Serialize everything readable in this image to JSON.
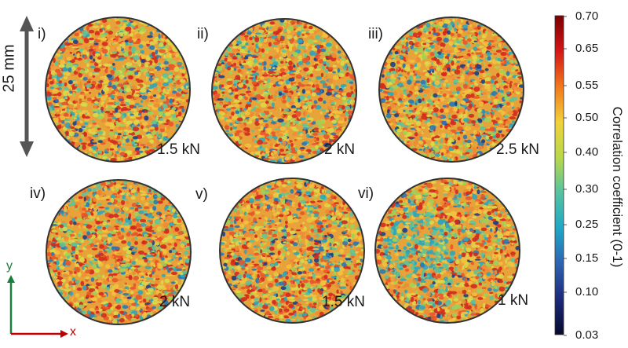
{
  "panels": [
    {
      "label": "i)",
      "load": "1.5 kN",
      "seed": 11,
      "lowPatch": false
    },
    {
      "label": "ii)",
      "load": "2 kN",
      "seed": 23,
      "lowPatch": false
    },
    {
      "label": "iii)",
      "load": "2.5 kN",
      "seed": 37,
      "lowPatch": false
    },
    {
      "label": "iv)",
      "load": "2 kN",
      "seed": 41,
      "lowPatch": false
    },
    {
      "label": "v)",
      "load": "1.5 kN",
      "seed": 53,
      "lowPatch": false
    },
    {
      "label": "vi)",
      "load": "1 kN",
      "seed": 67,
      "lowPatch": true
    }
  ],
  "scale_bar": {
    "label": "25 mm"
  },
  "axes": {
    "x_label": "x",
    "y_label": "y",
    "x_color": "#c00000",
    "y_color": "#1a7f3c"
  },
  "colorbar": {
    "title": "Correlation coefficient (0-1)",
    "ticks": [
      "0.70",
      "0.65",
      "0.55",
      "0.50",
      "0.40",
      "0.30",
      "0.25",
      "0.15",
      "0.10",
      "0.03"
    ],
    "stops": [
      "#7a0000",
      "#d51616",
      "#f2781c",
      "#f1d23b",
      "#b8d84a",
      "#55c3a2",
      "#20a7c7",
      "#2d63b0",
      "#1c2a7a",
      "#070a2c"
    ]
  }
}
